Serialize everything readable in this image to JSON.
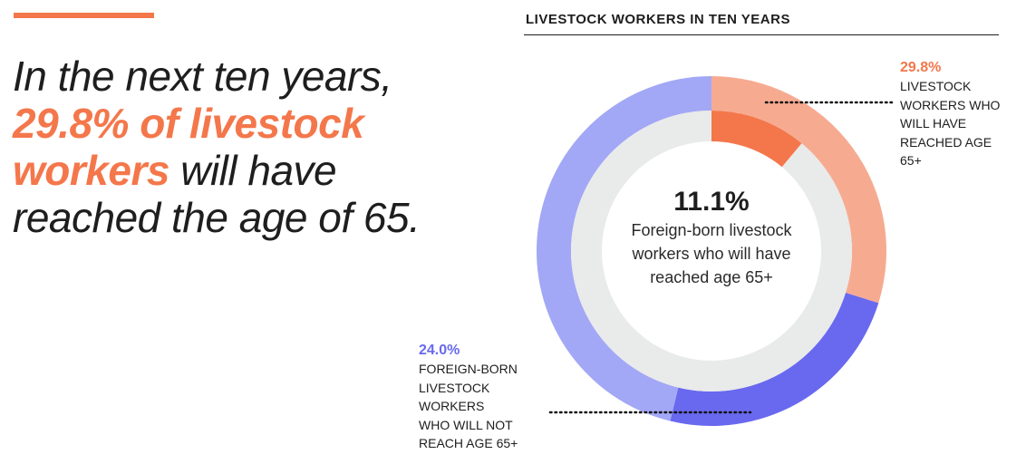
{
  "colors": {
    "accent": "#f4774b",
    "orange_light": "#f6ab91",
    "purple": "#6969ef",
    "purple_light": "#a2a8f5",
    "inner_bg": "#e9eaea",
    "dots": "#111111"
  },
  "headline": {
    "line1": "In the next ten years,",
    "highlight": "29.8% of livestock workers",
    "rest": " will have reached the age of 65."
  },
  "chart_data": {
    "type": "donut",
    "title": "LIVESTOCK WORKERS IN TEN YEARS",
    "outer_ring": [
      {
        "label": "LIVESTOCK WORKERS WHO WILL HAVE REACHED AGE 65+",
        "value": 29.8,
        "color": "#f6ab91"
      },
      {
        "label": "FOREIGN-BORN LIVESTOCK WORKERS WHO WILL NOT REACH AGE 65+",
        "value": 24.0,
        "color": "#6969ef"
      },
      {
        "label": "",
        "value": 46.2,
        "color": "#a2a8f5"
      }
    ],
    "inner_disc": [
      {
        "label": "Foreign-born livestock workers who will have reached age 65+",
        "value": 11.1,
        "color": "#f4774b"
      },
      {
        "label": "",
        "value": 88.9,
        "color": "#e9eaea"
      }
    ]
  },
  "center": {
    "value": "11.1%",
    "label": "Foreign-born livestock workers who will have reached age 65+"
  },
  "callouts": {
    "a": {
      "value": "29.8%",
      "lines": [
        "LIVESTOCK",
        "WORKERS WHO",
        "WILL HAVE",
        "REACHED AGE",
        "65+"
      ]
    },
    "b": {
      "value": "24.0%",
      "lines": [
        "FOREIGN-BORN",
        "LIVESTOCK",
        "WORKERS",
        "WHO WILL NOT",
        "REACH AGE 65+"
      ]
    }
  }
}
